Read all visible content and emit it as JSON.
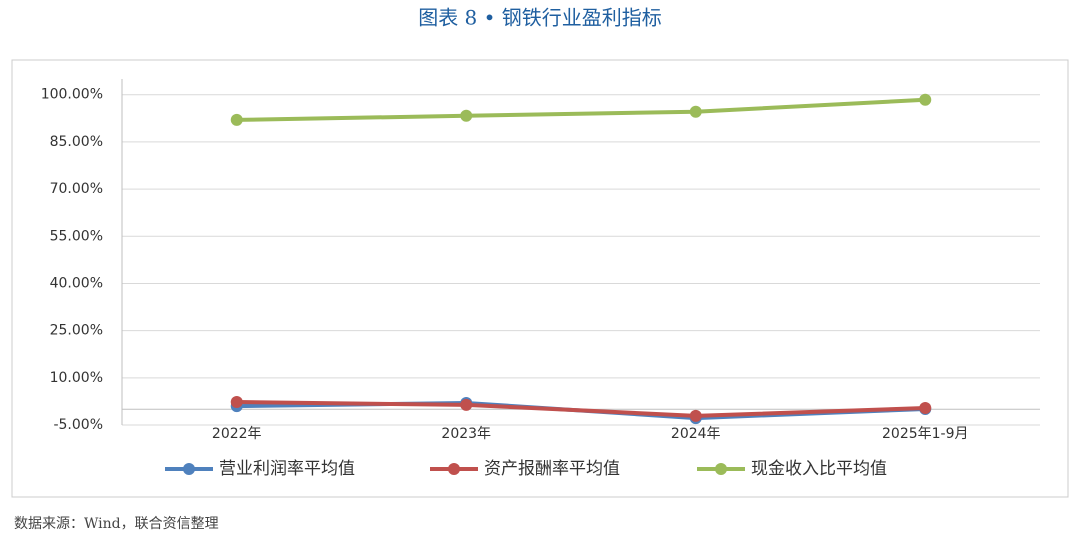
{
  "chart_data": {
    "type": "line",
    "title": "图表 8 • 钢铁行业盈利指标",
    "source": "数据来源：Wind，联合资信整理",
    "categories": [
      "2022年",
      "2023年",
      "2024年",
      "2025年1-9月"
    ],
    "series": [
      {
        "name": "营业利润率平均值",
        "color": "#4f81bd",
        "values": [
          1.0,
          2.0,
          -2.8,
          0.1
        ]
      },
      {
        "name": "资产报酬率平均值",
        "color": "#c0504d",
        "values": [
          2.3,
          1.4,
          -2.1,
          0.4
        ]
      },
      {
        "name": "现金收入比平均值",
        "color": "#9bbb59",
        "values": [
          92.0,
          93.3,
          94.6,
          98.4
        ]
      }
    ],
    "ylim": [
      -5,
      105
    ],
    "yticks": [
      {
        "value": -5,
        "label": "-5.00%"
      },
      {
        "value": 10,
        "label": "10.00%"
      },
      {
        "value": 25,
        "label": "25.00%"
      },
      {
        "value": 40,
        "label": "40.00%"
      },
      {
        "value": 55,
        "label": "55.00%"
      },
      {
        "value": 70,
        "label": "70.00%"
      },
      {
        "value": 85,
        "label": "85.00%"
      },
      {
        "value": 100,
        "label": "100.00%"
      }
    ],
    "grid": true,
    "legend": "bottom"
  }
}
